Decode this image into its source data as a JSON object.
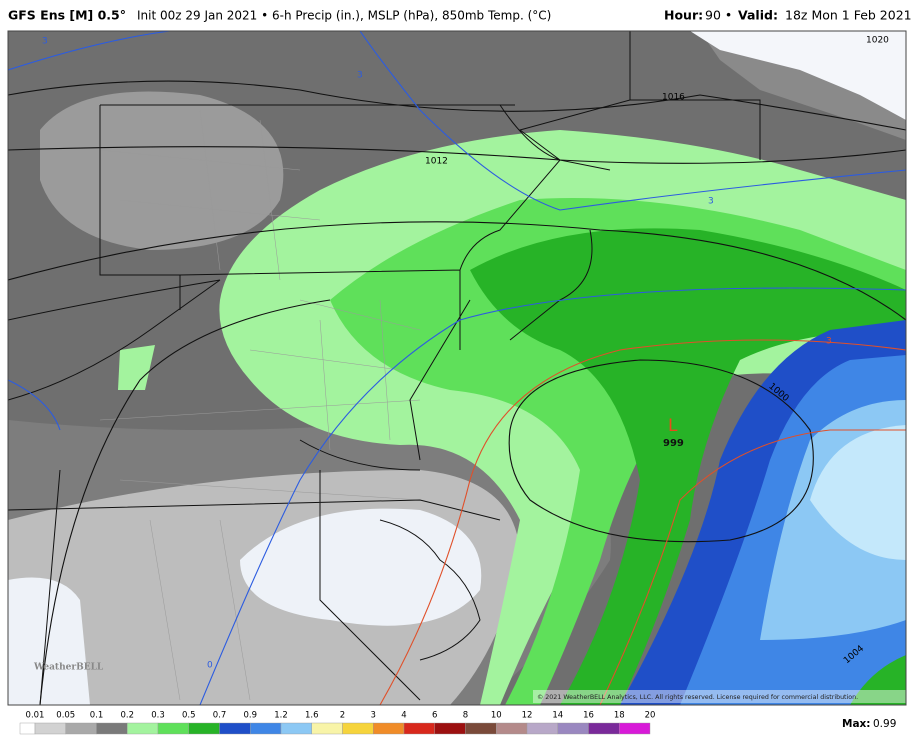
{
  "header": {
    "model": "GFS Ens [M] 0.5°",
    "description": "Init 00z 29 Jan 2021 • 6-h Precip (in.), MSLP (hPa), 850mb Temp. (°C)",
    "hour_label": "Hour:",
    "hour": "90 •",
    "valid_label": "Valid:",
    "valid": "18z Mon 1 Feb 2021"
  },
  "map": {
    "isobars": [
      "1020",
      "1016",
      "1012",
      "1000",
      "1004"
    ],
    "temp_labels": [
      "3",
      "3",
      "3",
      "3",
      "0"
    ],
    "low": {
      "symbol": "L",
      "pressure": "999"
    },
    "logo": "WeatherBELL",
    "copyright": "© 2021 WeatherBELL Analytics, LLC. All rights reserved. License required for commercial distribution."
  },
  "legend": {
    "labels": [
      "0.01",
      "0.05",
      "0.1",
      "0.2",
      "0.3",
      "0.5",
      "0.7",
      "0.9",
      "1.2",
      "1.6",
      "2",
      "3",
      "4",
      "6",
      "8",
      "10",
      "12",
      "14",
      "16",
      "18",
      "20"
    ],
    "colors": [
      "#ffffff",
      "#d2d2d2",
      "#a9a9a9",
      "#7a7a7a",
      "#a3f39e",
      "#5fe05a",
      "#27b327",
      "#1f4fc8",
      "#3f86e6",
      "#8cc8f4",
      "#f8f4a8",
      "#f6d43c",
      "#f08c28",
      "#d8281c",
      "#9c1010",
      "#7a4a3a",
      "#b48a8a",
      "#b8a8c8",
      "#9a88c0",
      "#7a2a9a",
      "#d81ad8"
    ],
    "max_label": "Max:",
    "max": "0.99"
  }
}
